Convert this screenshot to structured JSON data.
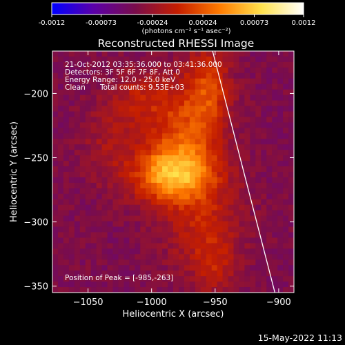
{
  "colorbar": {
    "ticks": [
      "-0.0012",
      "-0.00073",
      "-0.00024",
      "0.00024",
      "0.00073",
      "0.0012"
    ],
    "tick_values": [
      -0.0012,
      -0.00073,
      -0.00024,
      0.00024,
      0.00073,
      0.0012
    ],
    "range": [
      -0.0012,
      0.0012
    ],
    "unit_label": "(photons cm⁻² s⁻¹ asec⁻²)",
    "colormap": [
      "#0000ff",
      "#5b00a8",
      "#7a0d4a",
      "#c51e00",
      "#ff7b00",
      "#ffe24d",
      "#ffffff"
    ]
  },
  "annotations": {
    "time_range": "21-Oct-2012 03:35:36.000 to 03:41:36.000",
    "detectors": "Detectors: 3F 5F 6F 7F 8F, Att 0",
    "energy": "Energy Range: 12.0 - 25.0 keV",
    "method": "Clean",
    "counts": "Total counts: 9.53E+03",
    "peak": "Position of Peak = [-985,-263]"
  },
  "footer": {
    "date": "15-May-2022 11:13"
  },
  "chart_data": {
    "type": "heatmap",
    "title": "Reconstructed RHESSI Image",
    "xlabel": "Heliocentric X (arcsec)",
    "ylabel": "Heliocentric Y (arcsec)",
    "xlim": [
      -1078,
      -888
    ],
    "ylim": [
      -355,
      -167
    ],
    "xticks": [
      -1050,
      -1000,
      -950,
      -900
    ],
    "yticks": [
      -200,
      -250,
      -300,
      -350
    ],
    "peak": {
      "x": -985,
      "y": -263,
      "value": 0.0012
    },
    "background_value": -0.0004,
    "sources": [
      {
        "x": -985,
        "y": -263,
        "sx": 22,
        "sy": 15,
        "amp": 0.00085
      },
      {
        "x": -975,
        "y": -230,
        "sx": 20,
        "sy": 28,
        "amp": 0.0005
      },
      {
        "x": -955,
        "y": -195,
        "sx": 12,
        "sy": 25,
        "amp": 0.00045
      },
      {
        "x": -1010,
        "y": -205,
        "sx": 18,
        "sy": 16,
        "amp": 0.0003
      },
      {
        "x": -960,
        "y": -300,
        "sx": 22,
        "sy": 28,
        "amp": 0.00035
      },
      {
        "x": -950,
        "y": -335,
        "sx": 12,
        "sy": 16,
        "amp": 0.00025
      },
      {
        "x": -1035,
        "y": -240,
        "sx": 15,
        "sy": 20,
        "amp": 0.0002
      }
    ],
    "limb_line": [
      {
        "x": -952,
        "y": -167
      },
      {
        "x": -903,
        "y": -355
      }
    ],
    "grid": false
  }
}
